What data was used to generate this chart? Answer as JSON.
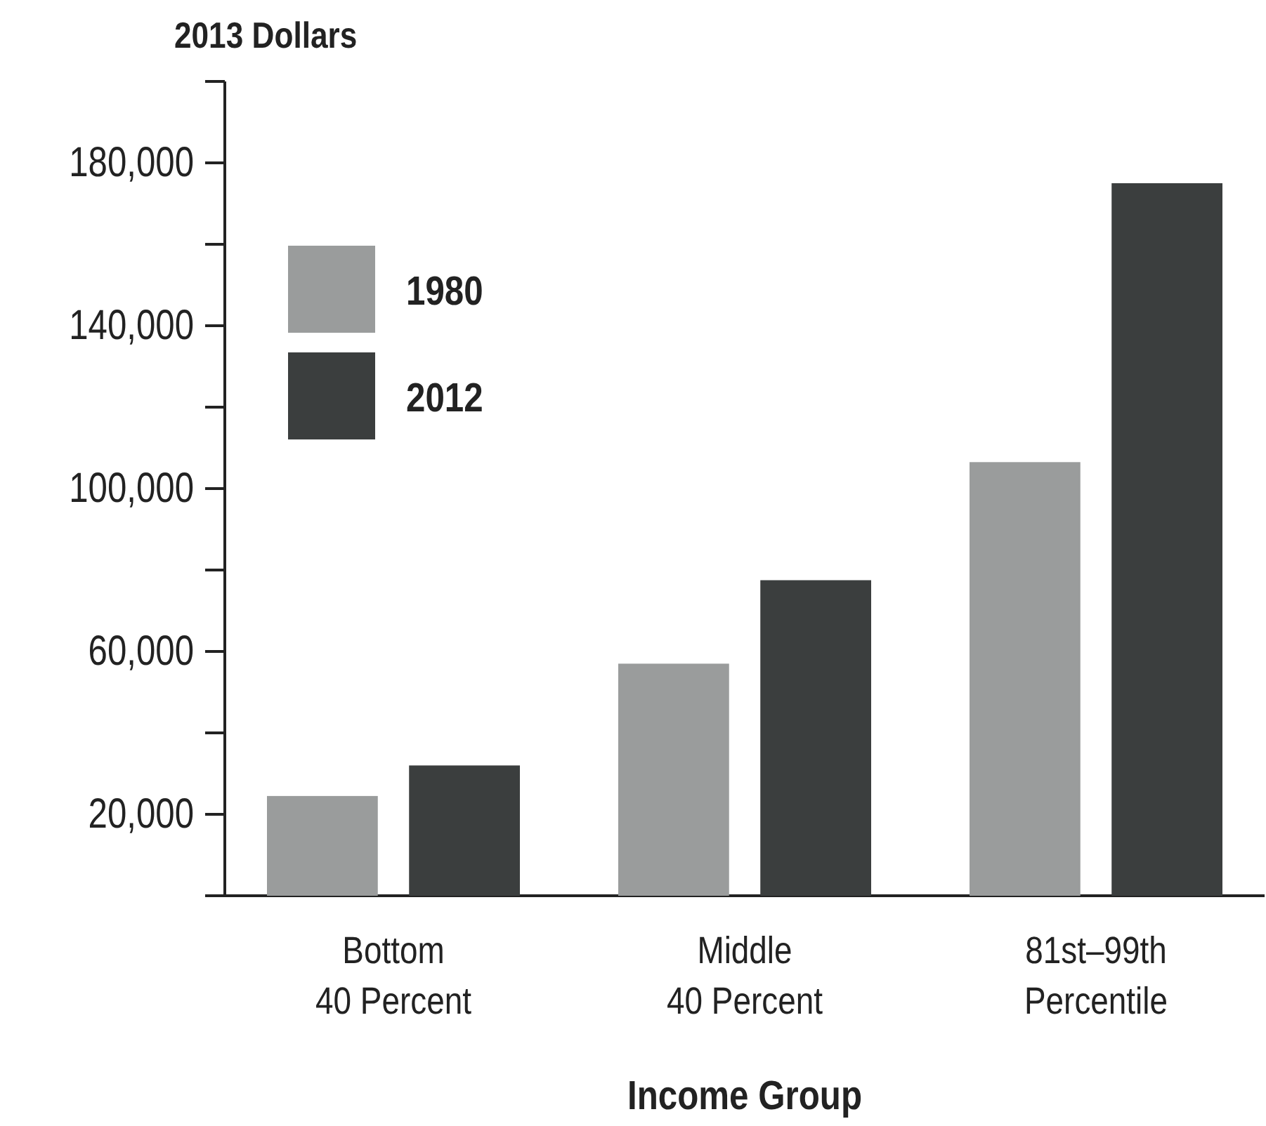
{
  "chart_data": {
    "type": "bar",
    "ylabel": "2013 Dollars",
    "xlabel": "Income Group",
    "categories": [
      "Bottom\n40 Percent",
      "Middle\n40 Percent",
      "81st–99th\nPercentile"
    ],
    "series": [
      {
        "name": "1980",
        "color": "#9a9c9c",
        "values": [
          24500,
          57000,
          106500
        ]
      },
      {
        "name": "2012",
        "color": "#3b3e3e",
        "values": [
          32000,
          77500,
          175000
        ]
      }
    ],
    "ylim": [
      0,
      200000
    ],
    "yticks": [
      {
        "value": 0,
        "label": null
      },
      {
        "value": 20000,
        "label": "20,000"
      },
      {
        "value": 40000,
        "label": null
      },
      {
        "value": 60000,
        "label": "60,000"
      },
      {
        "value": 80000,
        "label": null
      },
      {
        "value": 100000,
        "label": "100,000"
      },
      {
        "value": 120000,
        "label": null
      },
      {
        "value": 140000,
        "label": "140,000"
      },
      {
        "value": 160000,
        "label": null
      },
      {
        "value": 180000,
        "label": "180,000"
      },
      {
        "value": 200000,
        "label": null
      }
    ],
    "grid": false,
    "legend": "top left"
  }
}
